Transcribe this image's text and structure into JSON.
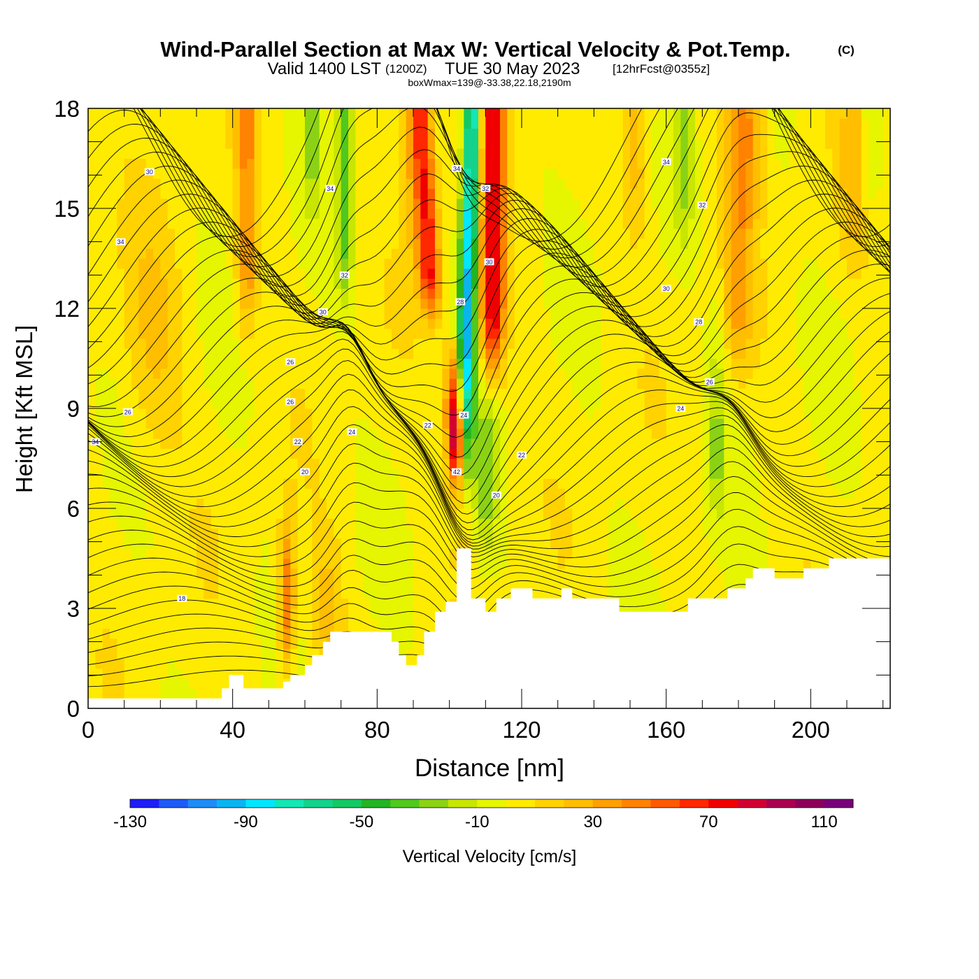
{
  "chart_data": {
    "type": "heatmap",
    "title": {
      "main": "Wind-Parallel Section at Max W: Vertical Velocity & Pot.Temp.",
      "copyright": "(C)",
      "valid_prefix": "Valid 1400 LST",
      "valid_utc": "(1200Z)",
      "valid_date": "TUE 30 May 2023",
      "forecast": "[12hrFcst@0355z]",
      "boxwmax": "boxWmax=139@-33.38,22.18,2190m"
    },
    "xlabel": "Distance [nm]",
    "ylabel": "Height [Kft MSL]",
    "xlim": [
      0,
      222
    ],
    "ylim": [
      0,
      18
    ],
    "x_ticks": [
      0,
      40,
      80,
      120,
      160,
      200
    ],
    "x_tick_labels": [
      "0",
      "40",
      "80",
      "120",
      "160",
      "200"
    ],
    "y_ticks": [
      0,
      3,
      6,
      9,
      12,
      15,
      18
    ],
    "y_tick_labels": [
      "0",
      "3",
      "6",
      "9",
      "12",
      "15",
      "18"
    ],
    "grid": false,
    "colorbar": {
      "label": "Vertical Velocity [cm/s]",
      "min": -130,
      "max": 120,
      "step": 10,
      "tick_values": [
        -130,
        -90,
        -50,
        -10,
        30,
        70,
        110
      ],
      "tick_labels": [
        "-130",
        "-90",
        "-50",
        "-10",
        "30",
        "70",
        "110"
      ],
      "colors": [
        "#1e1ef5",
        "#1e5af5",
        "#1e8cf5",
        "#0ab4f0",
        "#00e6ff",
        "#14e6b4",
        "#14d28c",
        "#14c864",
        "#23b423",
        "#50c81e",
        "#8cd214",
        "#c8e600",
        "#e6f500",
        "#ffeb00",
        "#ffd200",
        "#ffbe00",
        "#ffa000",
        "#ff8200",
        "#ff5a00",
        "#ff2800",
        "#f00000",
        "#d20032",
        "#aa0050",
        "#8c005a",
        "#780078"
      ]
    },
    "field_features": [
      {
        "kind": "updraft",
        "x": 102.5,
        "y_bottom": 4.5,
        "y_top": 10.5,
        "max_w": 139
      },
      {
        "kind": "downdraft_band",
        "x_bottom": 103,
        "x_top": 106.5,
        "y_bottom": 4.5,
        "y_top": 18,
        "min_w": -95
      },
      {
        "kind": "updraft_band",
        "x_bottom": 95,
        "x_top": 92,
        "y_bottom": 12,
        "y_top": 18,
        "w": 70
      },
      {
        "kind": "updraft_band",
        "x_bottom": 112,
        "x_top": 112,
        "y_bottom": 10,
        "y_top": 18,
        "w": 75
      },
      {
        "kind": "updraft_band",
        "x_bottom": 55,
        "x_top": 55,
        "y_bottom": 1,
        "y_top": 6,
        "w": 50
      }
    ],
    "theta_contours": {
      "units": "C",
      "labels": [
        {
          "text": "34",
          "x": 2,
          "y": 8.0
        },
        {
          "text": "26",
          "x": 11,
          "y": 8.9
        },
        {
          "text": "18",
          "x": 26,
          "y": 3.3
        },
        {
          "text": "34",
          "x": 9,
          "y": 14.0
        },
        {
          "text": "30",
          "x": 17,
          "y": 16.1
        },
        {
          "text": "34",
          "x": 67,
          "y": 15.6
        },
        {
          "text": "32",
          "x": 71,
          "y": 13.0
        },
        {
          "text": "30",
          "x": 65,
          "y": 11.9
        },
        {
          "text": "26",
          "x": 56,
          "y": 10.4
        },
        {
          "text": "26",
          "x": 56,
          "y": 9.2
        },
        {
          "text": "22",
          "x": 58,
          "y": 8.0
        },
        {
          "text": "20",
          "x": 60,
          "y": 7.1
        },
        {
          "text": "24",
          "x": 73,
          "y": 8.3
        },
        {
          "text": "22",
          "x": 94,
          "y": 8.5
        },
        {
          "text": "34",
          "x": 102,
          "y": 16.2
        },
        {
          "text": "32",
          "x": 110,
          "y": 15.6
        },
        {
          "text": "30",
          "x": 111,
          "y": 13.4
        },
        {
          "text": "28",
          "x": 103,
          "y": 12.2
        },
        {
          "text": "24",
          "x": 104,
          "y": 8.8
        },
        {
          "text": "42",
          "x": 102,
          "y": 7.1
        },
        {
          "text": "22",
          "x": 120,
          "y": 7.6
        },
        {
          "text": "20",
          "x": 113,
          "y": 6.4
        },
        {
          "text": "34",
          "x": 160,
          "y": 16.4
        },
        {
          "text": "32",
          "x": 170,
          "y": 15.1
        },
        {
          "text": "30",
          "x": 160,
          "y": 12.6
        },
        {
          "text": "28",
          "x": 169,
          "y": 11.6
        },
        {
          "text": "26",
          "x": 172,
          "y": 9.8
        },
        {
          "text": "24",
          "x": 164,
          "y": 9.0
        }
      ]
    },
    "terrain_profile": {
      "x": [
        0,
        37,
        37,
        39,
        39,
        43,
        43,
        54,
        54,
        56,
        56,
        60,
        60,
        62,
        62,
        65,
        65,
        67,
        67,
        84,
        84,
        86,
        86,
        88,
        88,
        91,
        91,
        93,
        93,
        96,
        96,
        99,
        99,
        102,
        102,
        106,
        106,
        110,
        110,
        113,
        113,
        117,
        117,
        123,
        123,
        131,
        131,
        134,
        134,
        147,
        147,
        166,
        166,
        177,
        177,
        182,
        182,
        184,
        184,
        190,
        190,
        198,
        198,
        205,
        205,
        222
      ],
      "y": [
        0.3,
        0.3,
        0.6,
        0.6,
        1.0,
        1.0,
        0.6,
        0.6,
        0.8,
        0.8,
        1.0,
        1.0,
        1.3,
        1.3,
        1.6,
        1.6,
        2.0,
        2.0,
        2.3,
        2.3,
        2.0,
        2.0,
        1.6,
        1.6,
        1.3,
        1.3,
        1.6,
        1.6,
        2.3,
        2.3,
        2.9,
        2.9,
        3.2,
        3.2,
        4.8,
        4.8,
        3.3,
        3.3,
        2.9,
        2.9,
        3.3,
        3.3,
        3.6,
        3.6,
        3.3,
        3.3,
        3.6,
        3.6,
        3.3,
        3.3,
        2.9,
        2.9,
        3.3,
        3.3,
        3.6,
        3.6,
        3.9,
        3.9,
        4.2,
        4.2,
        3.9,
        3.9,
        4.2,
        4.2,
        4.5,
        4.5
      ]
    }
  }
}
